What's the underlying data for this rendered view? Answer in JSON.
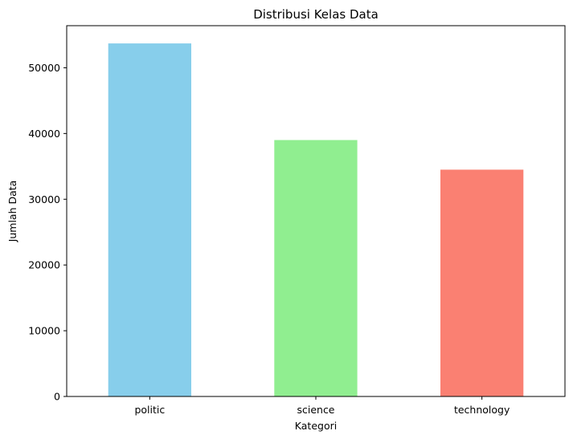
{
  "chart_data": {
    "type": "bar",
    "title": "Distribusi Kelas Data",
    "xlabel": "Kategori",
    "ylabel": "Jumlah Data",
    "categories": [
      "politic",
      "science",
      "technology"
    ],
    "values": [
      53700,
      39000,
      34500
    ],
    "colors": [
      "#87ceeb",
      "#90ee90",
      "#fa8072"
    ],
    "ylim": [
      0,
      56400
    ],
    "yticks": [
      0,
      10000,
      20000,
      30000,
      40000,
      50000
    ],
    "grid": false,
    "legend": "none"
  }
}
